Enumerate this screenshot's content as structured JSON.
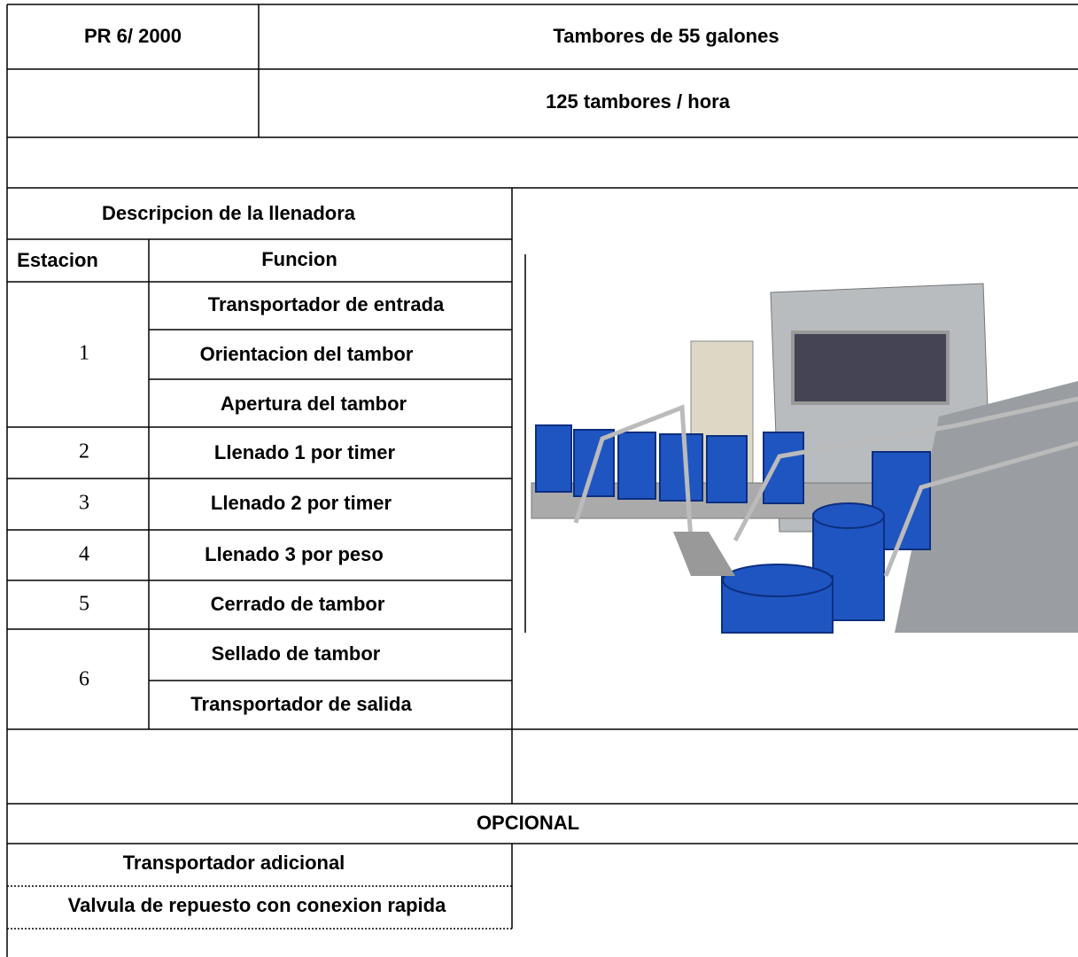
{
  "header": {
    "model": "PR 6/ 2000",
    "product": "Tambores de 55 galones",
    "capacity": "125 tambores / hora"
  },
  "table": {
    "title": "Descripcion de la llenadora",
    "columns": [
      "Estacion",
      "Funcion"
    ],
    "rows": [
      {
        "station": "1",
        "functions": [
          "Transportador de entrada",
          "Orientacion del tambor",
          "Apertura del tambor"
        ]
      },
      {
        "station": "2",
        "functions": [
          "Llenado 1 por timer"
        ]
      },
      {
        "station": "3",
        "functions": [
          "Llenado 2 por timer"
        ]
      },
      {
        "station": "4",
        "functions": [
          "Llenado 3 por peso"
        ]
      },
      {
        "station": "5",
        "functions": [
          "Cerrado de tambor"
        ]
      },
      {
        "station": "6",
        "functions": [
          "Sellado de tambor",
          "Transportador de salida"
        ]
      }
    ]
  },
  "optional": {
    "title": "OPCIONAL",
    "items": [
      "Transportador adicional",
      "Valvula de repuesto con conexion rapida"
    ]
  }
}
